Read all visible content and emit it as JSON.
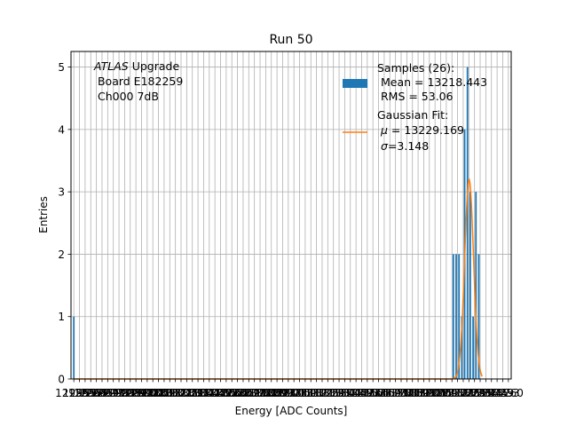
{
  "chart_data": {
    "type": "bar",
    "title": "Run 50",
    "xlabel": "Energy [ADC Counts]",
    "ylabel": "Entries",
    "ylim": [
      0,
      5.25
    ],
    "xlim": [
      12947,
      13259
    ],
    "yticks": [
      0,
      1,
      2,
      3,
      4,
      5
    ],
    "xtick_start_label": "12955",
    "xtick_end_label": "13260",
    "histogram": [
      {
        "x": 12949,
        "count": 1
      },
      {
        "x": 13218,
        "count": 2
      },
      {
        "x": 13220,
        "count": 2
      },
      {
        "x": 13222,
        "count": 2
      },
      {
        "x": 13224,
        "count": 1
      },
      {
        "x": 13226,
        "count": 4
      },
      {
        "x": 13228,
        "count": 5
      },
      {
        "x": 13230,
        "count": 3
      },
      {
        "x": 13232,
        "count": 1
      },
      {
        "x": 13234,
        "count": 3
      },
      {
        "x": 13236,
        "count": 2
      }
    ],
    "fit": {
      "type": "gaussian",
      "mu": 13229.169,
      "sigma": 3.148,
      "amplitude": 3.2
    },
    "annotation": {
      "italic": "ATLAS",
      "rest": " Upgrade",
      "line2": " Board E182259",
      "line3": " Ch000 7dB"
    },
    "legend": {
      "samples_line1": "Samples (26):",
      "samples_line2": " Mean = 13218.443",
      "samples_line3": " RMS = 53.06",
      "fit_line1": "Gaussian Fit:",
      "fit_mu_label": "μ",
      "fit_mu_value": " = 13229.169",
      "fit_sigma_label": "σ",
      "fit_sigma_value": "=3.148"
    },
    "colors": {
      "bars": "#1f77b4",
      "fit": "#ff7f0e",
      "grid": "#b0b0b0"
    }
  }
}
